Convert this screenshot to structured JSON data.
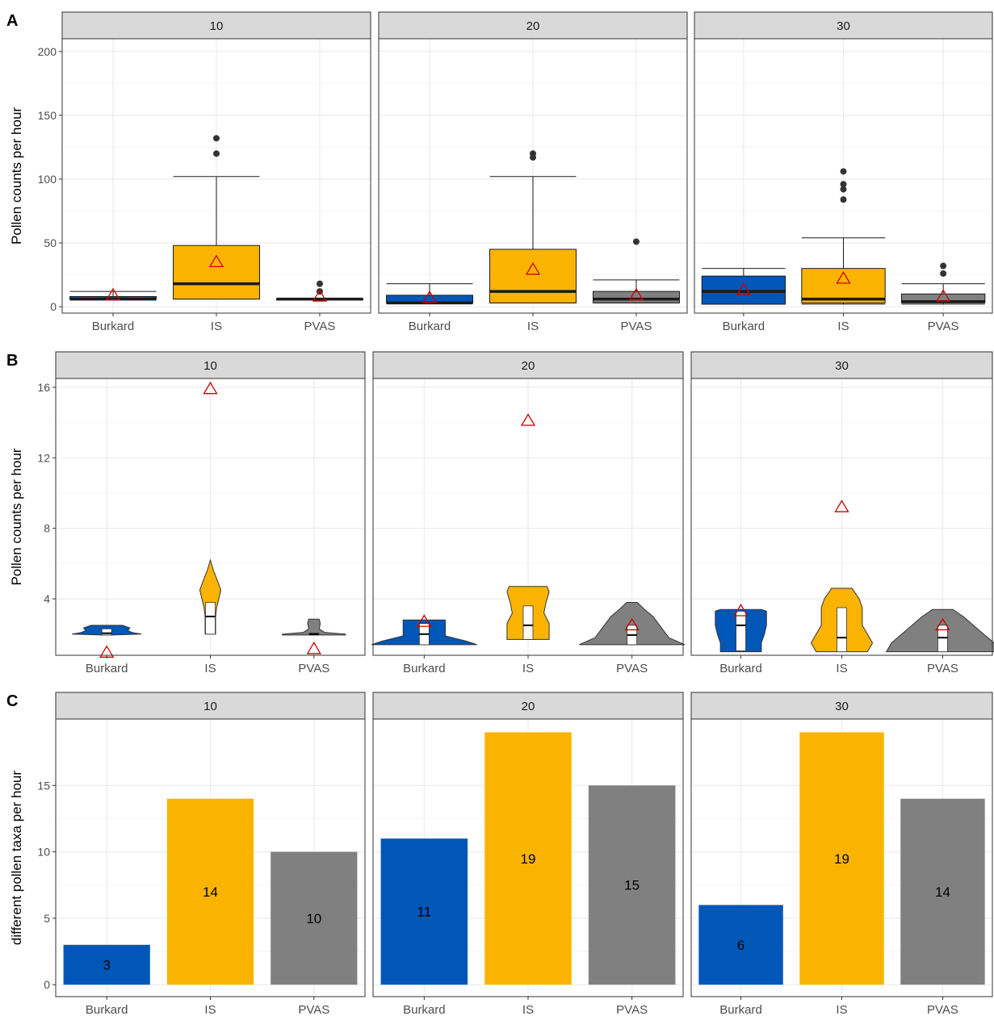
{
  "colors": {
    "Burkard": "#0057b8",
    "IS": "#fab400",
    "PVAS": "#808080",
    "mean_marker": "#d00000",
    "strip_fill": "#d9d9d9",
    "grid": "#ebebeb"
  },
  "chart_data": [
    {
      "panel_label": "A",
      "type": "boxplot",
      "ylabel": "Pollen counts per hour",
      "ylim": [
        -5,
        210
      ],
      "yticks": [
        0,
        50,
        100,
        150,
        200
      ],
      "categories": [
        "Burkard",
        "IS",
        "PVAS"
      ],
      "facets": [
        {
          "title": "10",
          "groups": [
            {
              "name": "Burkard",
              "q1": 6,
              "median": 6,
              "q3": 8,
              "lower": 6,
              "upper": 12,
              "mean": 9,
              "outliers": []
            },
            {
              "name": "IS",
              "q1": 6,
              "median": 18,
              "q3": 48,
              "lower": 6,
              "upper": 102,
              "mean": 35,
              "outliers": [
                132,
                120
              ]
            },
            {
              "name": "PVAS",
              "q1": 6,
              "median": 6,
              "q3": 6,
              "lower": 6,
              "upper": 6,
              "mean": 8,
              "outliers": [
                18,
                12
              ]
            }
          ]
        },
        {
          "title": "20",
          "groups": [
            {
              "name": "Burkard",
              "q1": 3,
              "median": 3,
              "q3": 9,
              "lower": 3,
              "upper": 18,
              "mean": 7,
              "outliers": []
            },
            {
              "name": "IS",
              "q1": 3,
              "median": 12,
              "q3": 45,
              "lower": 3,
              "upper": 102,
              "mean": 29,
              "outliers": [
                120,
                117
              ]
            },
            {
              "name": "PVAS",
              "q1": 3,
              "median": 6,
              "q3": 12,
              "lower": 3,
              "upper": 21,
              "mean": 9,
              "outliers": [
                51
              ]
            }
          ]
        },
        {
          "title": "30",
          "groups": [
            {
              "name": "Burkard",
              "q1": 2,
              "median": 12,
              "q3": 24,
              "lower": 2,
              "upper": 30,
              "mean": 13,
              "outliers": []
            },
            {
              "name": "IS",
              "q1": 3,
              "median": 6,
              "q3": 30,
              "lower": 2,
              "upper": 54,
              "mean": 22,
              "outliers": [
                106,
                96,
                92,
                84
              ]
            },
            {
              "name": "PVAS",
              "q1": 3,
              "median": 4,
              "q3": 10,
              "lower": 2,
              "upper": 18,
              "mean": 8,
              "outliers": [
                32,
                26
              ]
            }
          ]
        }
      ]
    },
    {
      "panel_label": "B",
      "type": "violin",
      "ylabel": "Pollen counts per hour",
      "ylim": [
        0.8,
        16.5
      ],
      "yticks": [
        4,
        8,
        12,
        16
      ],
      "categories": [
        "Burkard",
        "IS",
        "PVAS"
      ],
      "facets": [
        {
          "title": "10",
          "groups": [
            {
              "name": "Burkard",
              "violin": [
                [
                  1.95,
                  0.05
                ],
                [
                  2.0,
                  0.33
                ],
                [
                  2.08,
                  0.25
                ],
                [
                  2.2,
                  0.2
                ],
                [
                  2.35,
                  0.22
                ],
                [
                  2.5,
                  0.15
                ]
              ],
              "q1": 1.95,
              "median": 2.05,
              "q3": 2.3,
              "mean": 0.95
            },
            {
              "name": "IS",
              "violin": [
                [
                  2.0,
                  0.05
                ],
                [
                  2.5,
                  0.05
                ],
                [
                  3.0,
                  0.05
                ],
                [
                  3.5,
                  0.06
                ],
                [
                  4.0,
                  0.08
                ],
                [
                  4.5,
                  0.1
                ],
                [
                  5.0,
                  0.07
                ],
                [
                  5.6,
                  0.03
                ],
                [
                  6.2,
                  0.0
                ]
              ],
              "q1": 2.0,
              "median": 3.0,
              "q3": 3.8,
              "mean": 15.9
            },
            {
              "name": "PVAS",
              "violin": [
                [
                  1.95,
                  0.3
                ],
                [
                  2.0,
                  0.3
                ],
                [
                  2.1,
                  0.1
                ],
                [
                  2.3,
                  0.05
                ],
                [
                  2.6,
                  0.06
                ],
                [
                  2.85,
                  0.05
                ]
              ],
              "q1": 1.95,
              "median": 2.0,
              "q3": 2.05,
              "mean": 1.15
            }
          ]
        },
        {
          "title": "20",
          "groups": [
            {
              "name": "Burkard",
              "violin": [
                [
                  1.4,
                  0.5
                ],
                [
                  1.6,
                  0.4
                ],
                [
                  1.9,
                  0.2
                ],
                [
                  2.2,
                  0.2
                ],
                [
                  2.5,
                  0.2
                ],
                [
                  2.8,
                  0.2
                ]
              ],
              "q1": 1.4,
              "median": 2.0,
              "q3": 2.6,
              "mean": 2.7
            },
            {
              "name": "IS",
              "violin": [
                [
                  1.7,
                  0.2
                ],
                [
                  2.0,
                  0.2
                ],
                [
                  2.6,
                  0.2
                ],
                [
                  3.2,
                  0.15
                ],
                [
                  3.8,
                  0.17
                ],
                [
                  4.4,
                  0.2
                ],
                [
                  4.7,
                  0.18
                ]
              ],
              "q1": 1.7,
              "median": 2.5,
              "q3": 3.6,
              "mean": 14.1
            },
            {
              "name": "PVAS",
              "violin": [
                [
                  1.4,
                  0.5
                ],
                [
                  1.8,
                  0.35
                ],
                [
                  2.2,
                  0.3
                ],
                [
                  2.6,
                  0.25
                ],
                [
                  3.0,
                  0.2
                ],
                [
                  3.4,
                  0.12
                ],
                [
                  3.8,
                  0.05
                ]
              ],
              "q1": 1.4,
              "median": 1.95,
              "q3": 2.5,
              "mean": 2.5
            }
          ]
        },
        {
          "title": "30",
          "groups": [
            {
              "name": "Burkard",
              "violin": [
                [
                  1.0,
                  0.2
                ],
                [
                  1.5,
                  0.2
                ],
                [
                  2.0,
                  0.23
                ],
                [
                  2.5,
                  0.25
                ],
                [
                  3.0,
                  0.25
                ],
                [
                  3.3,
                  0.25
                ],
                [
                  3.4,
                  0.2
                ]
              ],
              "q1": 1.05,
              "median": 2.5,
              "q3": 3.3,
              "mean": 3.3
            },
            {
              "name": "IS",
              "violin": [
                [
                  1.0,
                  0.25
                ],
                [
                  1.5,
                  0.3
                ],
                [
                  2.0,
                  0.25
                ],
                [
                  2.5,
                  0.2
                ],
                [
                  3.0,
                  0.2
                ],
                [
                  3.5,
                  0.2
                ],
                [
                  4.0,
                  0.17
                ],
                [
                  4.6,
                  0.1
                ]
              ],
              "q1": 1.0,
              "median": 1.8,
              "q3": 3.5,
              "mean": 9.2
            },
            {
              "name": "PVAS",
              "violin": [
                [
                  1.0,
                  0.55
                ],
                [
                  1.5,
                  0.5
                ],
                [
                  2.0,
                  0.4
                ],
                [
                  2.5,
                  0.3
                ],
                [
                  3.0,
                  0.2
                ],
                [
                  3.4,
                  0.1
                ]
              ],
              "q1": 1.0,
              "median": 1.8,
              "q3": 2.5,
              "mean": 2.5
            }
          ]
        }
      ]
    },
    {
      "panel_label": "C",
      "type": "bar",
      "ylabel": "different pollen taxa per hour",
      "ylim": [
        -0.9,
        20
      ],
      "yticks": [
        0,
        5,
        10,
        15
      ],
      "categories": [
        "Burkard",
        "IS",
        "PVAS"
      ],
      "facets": [
        {
          "title": "10",
          "values": [
            3,
            14,
            10
          ]
        },
        {
          "title": "20",
          "values": [
            11,
            19,
            15
          ]
        },
        {
          "title": "30",
          "values": [
            6,
            19,
            14
          ]
        }
      ]
    }
  ]
}
